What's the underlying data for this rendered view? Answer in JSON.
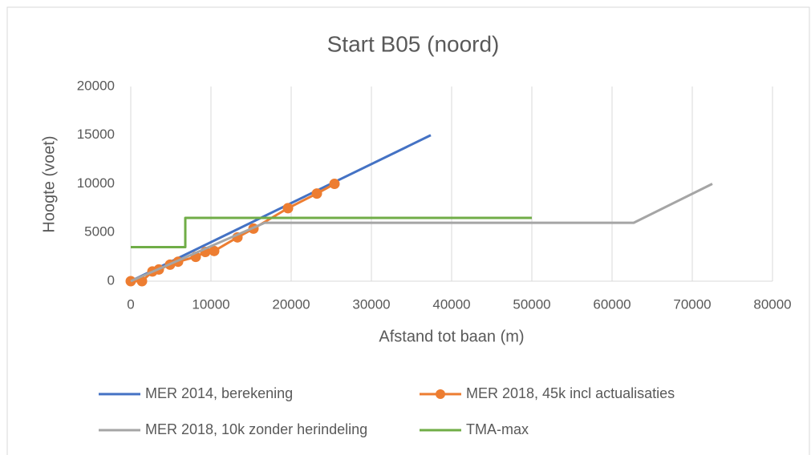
{
  "chart_data": {
    "type": "line",
    "title": "Start B05 (noord)",
    "x_label": "Afstand tot baan (m)",
    "y_label": "Hoogte (voet)",
    "xlim": [
      0,
      80000
    ],
    "xticks": [
      0,
      10000,
      20000,
      30000,
      40000,
      50000,
      60000,
      70000,
      80000
    ],
    "ylim": [
      0,
      20000
    ],
    "yticks": [
      0,
      5000,
      10000,
      15000,
      20000
    ],
    "grid": "x",
    "legend": "bottom",
    "series": [
      {
        "name": "MER 2014, berekening",
        "color": "#4472c4",
        "marker": false,
        "x": [
          0,
          37400
        ],
        "values": [
          0,
          15000
        ]
      },
      {
        "name": "MER 2018, 45k incl actualisaties",
        "color": "#ed7d31",
        "marker": true,
        "x": [
          0,
          1400,
          2700,
          3500,
          4900,
          5900,
          8100,
          9300,
          10400,
          13300,
          15300,
          19600,
          23200,
          25400
        ],
        "values": [
          0,
          0,
          1000,
          1200,
          1700,
          2000,
          2500,
          3000,
          3100,
          4500,
          5400,
          7500,
          9000,
          10000
        ]
      },
      {
        "name": "MER 2018, 10k zonder herindeling",
        "color": "#a5a5a5",
        "marker": false,
        "x": [
          0,
          16700,
          62700,
          72500
        ],
        "values": [
          0,
          6000,
          6000,
          10000
        ]
      },
      {
        "name": "TMA-max",
        "color": "#70ad47",
        "marker": false,
        "x": [
          0,
          6800,
          6800,
          50000
        ],
        "values": [
          3500,
          3500,
          6500,
          6500
        ]
      }
    ]
  }
}
